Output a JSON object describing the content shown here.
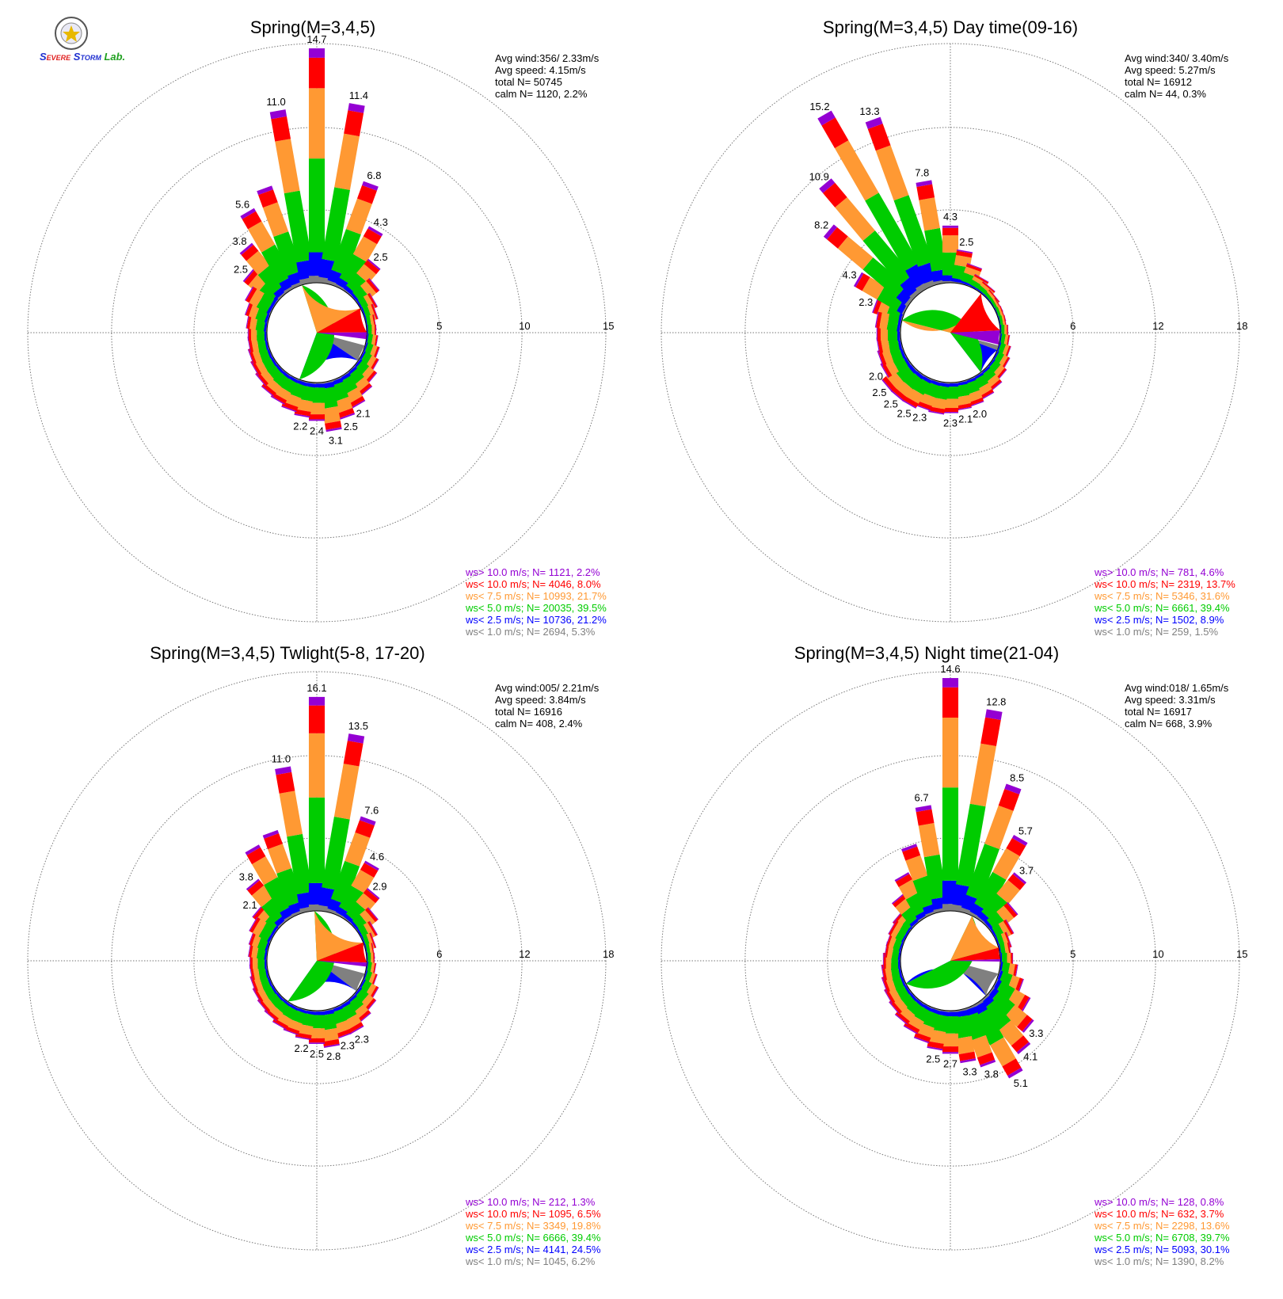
{
  "logo": {
    "text": "Severe Storm Lab.",
    "colors": [
      "#2030d0",
      "#e02020",
      "#20a020"
    ]
  },
  "colors": {
    "ws_gt_10": "#9400d3",
    "ws_lt_10": "#ff0000",
    "ws_lt_7_5": "#ff9933",
    "ws_lt_5": "#00cc00",
    "ws_lt_2_5": "#0000ff",
    "ws_lt_1": "#808080"
  },
  "chart_data": [
    {
      "type": "wind-rose",
      "title": "Spring(M=3,4,5)",
      "ticks": [
        "5",
        "10",
        "15"
      ],
      "rmax": 15,
      "stats": [
        "Avg wind:356/ 2.33m/s",
        "Avg speed: 4.15m/s",
        "total N=       50745",
        "calm N=   1120,   2.2%"
      ],
      "legend": [
        {
          "text": "ws> 10.0 m/s; N=  1121,  2.2%",
          "color": "#9400d3"
        },
        {
          "text": "ws< 10.0 m/s; N=  4046,  8.0%",
          "color": "#ff0000"
        },
        {
          "text": "ws<  7.5 m/s; N= 10993, 21.7%",
          "color": "#ff9933"
        },
        {
          "text": "ws<  5.0 m/s; N= 20035, 39.5%",
          "color": "#00cc00"
        },
        {
          "text": "ws<  2.5 m/s; N= 10736, 21.2%",
          "color": "#0000ff"
        },
        {
          "text": "ws<  1.0 m/s; N=  2694,  5.3%",
          "color": "#808080"
        }
      ],
      "pie_percent": [
        5.3,
        21.2,
        39.5,
        21.7,
        8.0,
        2.2
      ],
      "sectors_deg": [
        -50,
        -40,
        -30,
        -20,
        -10,
        0,
        10,
        20,
        30,
        40,
        50,
        60,
        70,
        80,
        90,
        100,
        110,
        120,
        130,
        140,
        150,
        160,
        170,
        180,
        190,
        200,
        210,
        220,
        230,
        240,
        250,
        260,
        270,
        280,
        290,
        300
      ],
      "totals": [
        2.5,
        3.8,
        5.6,
        6.5,
        11.0,
        14.7,
        11.4,
        6.8,
        4.3,
        2.5,
        1.6,
        1.0,
        0.8,
        0.6,
        0.6,
        0.7,
        0.9,
        1.1,
        1.4,
        1.7,
        2.1,
        2.5,
        3.1,
        2.4,
        2.2,
        2.0,
        1.8,
        1.7,
        1.5,
        1.4,
        1.3,
        1.2,
        1.2,
        1.3,
        1.5,
        1.8
      ],
      "labeled_values": [
        "3.8",
        "5.6",
        "11.0",
        "14.7",
        "11.4",
        "6.8",
        "4.3",
        "2.5",
        "2.1",
        "2.5",
        "3.1",
        "2.4",
        "2.2"
      ]
    },
    {
      "type": "wind-rose",
      "title": "Spring(M=3,4,5) Day time(09-16)",
      "ticks": [
        "6",
        "12",
        "18"
      ],
      "rmax": 18,
      "stats": [
        "Avg wind:340/ 3.40m/s",
        "Avg speed: 5.27m/s",
        "total N=       16912",
        "calm N=     44,   0.3%"
      ],
      "legend": [
        {
          "text": "ws> 10.0 m/s; N=   781,  4.6%",
          "color": "#9400d3"
        },
        {
          "text": "ws< 10.0 m/s; N=  2319, 13.7%",
          "color": "#ff0000"
        },
        {
          "text": "ws<  7.5 m/s; N=  5346, 31.6%",
          "color": "#ff9933"
        },
        {
          "text": "ws<  5.0 m/s; N=  6661, 39.4%",
          "color": "#00cc00"
        },
        {
          "text": "ws<  2.5 m/s; N=  1502,  8.9%",
          "color": "#0000ff"
        },
        {
          "text": "ws<  1.0 m/s; N=   259,  1.5%",
          "color": "#808080"
        }
      ],
      "pie_percent": [
        1.5,
        8.9,
        39.4,
        31.6,
        13.7,
        4.6
      ],
      "sectors_deg": [
        -70,
        -60,
        -50,
        -40,
        -30,
        -20,
        -10,
        0,
        10,
        20,
        30,
        40,
        50,
        60,
        70,
        80,
        90,
        100,
        110,
        120,
        130,
        140,
        150,
        160,
        170,
        180,
        190,
        200,
        210,
        220,
        230,
        240,
        250,
        260,
        270,
        280
      ],
      "totals": [
        2.3,
        4.3,
        8.2,
        10.9,
        15.2,
        13.3,
        7.8,
        4.3,
        2.5,
        1.6,
        1.0,
        0.8,
        0.6,
        0.5,
        0.5,
        0.5,
        0.6,
        0.7,
        0.9,
        1.1,
        1.3,
        1.6,
        1.8,
        2.0,
        2.1,
        2.3,
        2.4,
        2.3,
        2.5,
        2.5,
        2.5,
        2.0,
        1.9,
        1.8,
        1.8,
        1.9
      ],
      "labeled_values": [
        "2.3",
        "4.3",
        "8.2",
        "10.9",
        "15.2",
        "13.3",
        "7.8",
        "4.3",
        "2.5",
        "2.1",
        "2.3",
        "2.5",
        "2.5",
        "2.0"
      ]
    },
    {
      "type": "wind-rose",
      "title": "Spring(M=3,4,5) Twlight(5-8, 17-20)",
      "ticks": [
        "6",
        "12",
        "18"
      ],
      "rmax": 18,
      "stats": [
        "Avg wind:005/ 2.21m/s",
        "Avg speed: 3.84m/s",
        "total N=       16916",
        "calm N=    408,   2.4%"
      ],
      "legend": [
        {
          "text": "ws> 10.0 m/s; N=   212,  1.3%",
          "color": "#9400d3"
        },
        {
          "text": "ws< 10.0 m/s; N=  1095,  6.5%",
          "color": "#ff0000"
        },
        {
          "text": "ws<  7.5 m/s; N=  3349, 19.8%",
          "color": "#ff9933"
        },
        {
          "text": "ws<  5.0 m/s; N=  6666, 39.4%",
          "color": "#00cc00"
        },
        {
          "text": "ws<  2.5 m/s; N=  4141, 24.5%",
          "color": "#0000ff"
        },
        {
          "text": "ws<  1.0 m/s; N=  1045,  6.2%",
          "color": "#808080"
        }
      ],
      "pie_percent": [
        6.2,
        24.5,
        39.4,
        19.8,
        6.5,
        1.3
      ],
      "sectors_deg": [
        -50,
        -40,
        -30,
        -20,
        -10,
        0,
        10,
        20,
        30,
        40,
        50,
        60,
        70,
        80,
        90,
        100,
        110,
        120,
        130,
        140,
        150,
        160,
        170,
        180,
        190,
        200,
        210,
        220,
        230,
        240,
        250,
        260,
        270,
        280,
        290,
        300
      ],
      "totals": [
        2.1,
        3.8,
        6.0,
        6.5,
        11.0,
        16.1,
        13.5,
        7.6,
        4.6,
        2.9,
        1.8,
        1.2,
        0.8,
        0.6,
        0.6,
        0.7,
        0.9,
        1.3,
        1.6,
        1.9,
        2.3,
        2.3,
        2.8,
        2.5,
        2.2,
        2.0,
        1.9,
        1.7,
        1.6,
        1.5,
        1.4,
        1.3,
        1.3,
        1.4,
        1.5,
        1.8
      ],
      "labeled_values": [
        "2.1",
        "3.8",
        "11.0",
        "16.1",
        "13.5",
        "7.6",
        "4.6",
        "2.9",
        "2.3",
        "2.8",
        "2.5",
        "2.2"
      ]
    },
    {
      "type": "wind-rose",
      "title": "Spring(M=3,4,5) Night time(21-04)",
      "ticks": [
        "5",
        "10",
        "15"
      ],
      "rmax": 15,
      "stats": [
        "Avg wind:018/ 1.65m/s",
        "Avg speed: 3.31m/s",
        "total N=       16917",
        "calm N=    668,   3.9%"
      ],
      "legend": [
        {
          "text": "ws> 10.0 m/s; N=   128,  0.8%",
          "color": "#9400d3"
        },
        {
          "text": "ws< 10.0 m/s; N=   632,  3.7%",
          "color": "#ff0000"
        },
        {
          "text": "ws<  7.5 m/s; N=  2298, 13.6%",
          "color": "#ff9933"
        },
        {
          "text": "ws<  5.0 m/s; N=  6708, 39.7%",
          "color": "#00cc00"
        },
        {
          "text": "ws<  2.5 m/s; N=  5093, 30.1%",
          "color": "#0000ff"
        },
        {
          "text": "ws<  1.0 m/s; N=  1390,  8.2%",
          "color": "#808080"
        }
      ],
      "pie_percent": [
        8.2,
        30.1,
        39.7,
        13.6,
        3.7,
        0.8
      ],
      "sectors_deg": [
        -50,
        -40,
        -30,
        -20,
        -10,
        0,
        10,
        20,
        30,
        40,
        50,
        60,
        70,
        80,
        90,
        100,
        110,
        120,
        130,
        140,
        150,
        160,
        170,
        180,
        190,
        200,
        210,
        220,
        230,
        240,
        250,
        260,
        270,
        280,
        290,
        300
      ],
      "totals": [
        1.2,
        2.0,
        3.0,
        4.5,
        6.7,
        14.6,
        12.8,
        8.5,
        5.7,
        3.7,
        2.0,
        1.2,
        0.8,
        0.7,
        0.8,
        1.1,
        1.6,
        2.4,
        3.3,
        4.1,
        5.1,
        3.8,
        3.3,
        2.7,
        2.5,
        2.2,
        1.9,
        1.7,
        1.5,
        1.4,
        1.3,
        1.2,
        1.1,
        1.0,
        1.0,
        1.1
      ],
      "labeled_values": [
        "6.7",
        "14.6",
        "12.8",
        "8.5",
        "5.7",
        "3.7",
        "3.3",
        "4.1",
        "5.1",
        "3.8",
        "3.3",
        "2.7",
        "2.5"
      ]
    }
  ]
}
